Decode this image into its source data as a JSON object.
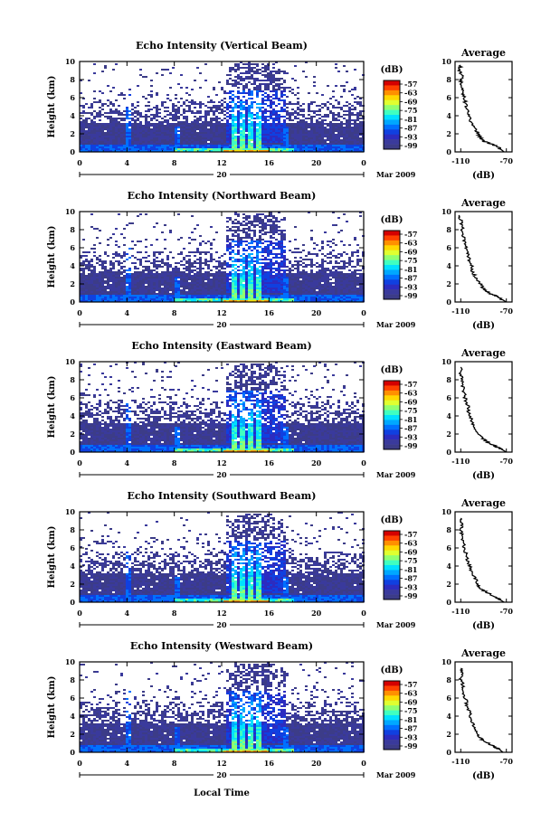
{
  "chart_data": {
    "type": "heatmap",
    "x_ticks": [
      "0",
      "4",
      "8",
      "12",
      "16",
      "20",
      "0"
    ],
    "y_ticks": [
      "0",
      "2",
      "4",
      "6",
      "8",
      "10"
    ],
    "ylabel": "Height (km)",
    "xlabel": "Local Time",
    "xlim": [
      0,
      24
    ],
    "ylim": [
      0,
      10
    ],
    "date_label": "20",
    "date_suffix": "Mar 2009",
    "colorbar": {
      "label": "(dB)",
      "ticks": [
        "-57",
        "-63",
        "-69",
        "-75",
        "-81",
        "-87",
        "-93",
        "-99"
      ],
      "colors": [
        "#d40000",
        "#ff4000",
        "#ff9000",
        "#ffd800",
        "#e0ff30",
        "#90ff70",
        "#40ffc0",
        "#00e0ff",
        "#00a8ff",
        "#0070ff",
        "#1040e0",
        "#2c2cc0",
        "#3a3a9c",
        "#3c3c88"
      ]
    },
    "average": {
      "title": "Average",
      "xlabel": "(dB)",
      "x_ticks": [
        "-110",
        "-70"
      ],
      "y_ticks": [
        "0",
        "2",
        "4",
        "6",
        "8",
        "10"
      ],
      "xlim": [
        -115,
        -65
      ],
      "ylim": [
        0,
        10
      ]
    },
    "panels": [
      {
        "title": "Echo Intensity (Vertical Beam)",
        "profile": [
          [
            -72,
            0
          ],
          [
            -75,
            0.3
          ],
          [
            -78,
            0.6
          ],
          [
            -84,
            0.9
          ],
          [
            -90,
            1.2
          ],
          [
            -93,
            1.6
          ],
          [
            -95,
            2.0
          ],
          [
            -97,
            2.5
          ],
          [
            -100,
            3.0
          ],
          [
            -102,
            3.6
          ],
          [
            -103,
            4.2
          ],
          [
            -105,
            4.8
          ],
          [
            -106,
            5.4
          ],
          [
            -107,
            6.0
          ],
          [
            -108,
            6.6
          ],
          [
            -109,
            7.2
          ],
          [
            -110,
            7.8
          ],
          [
            -109,
            8.4
          ],
          [
            -111,
            9.0
          ],
          [
            -110,
            9.6
          ]
        ]
      },
      {
        "title": "Echo Intensity (Northward Beam)",
        "profile": [
          [
            -70,
            0
          ],
          [
            -74,
            0.3
          ],
          [
            -78,
            0.6
          ],
          [
            -84,
            0.9
          ],
          [
            -88,
            1.3
          ],
          [
            -92,
            1.8
          ],
          [
            -95,
            2.3
          ],
          [
            -98,
            2.9
          ],
          [
            -100,
            3.5
          ],
          [
            -101,
            4.2
          ],
          [
            -103,
            4.8
          ],
          [
            -104,
            5.5
          ],
          [
            -106,
            6.2
          ],
          [
            -107,
            6.9
          ],
          [
            -108,
            7.6
          ],
          [
            -109,
            8.3
          ],
          [
            -110,
            9.0
          ],
          [
            -111,
            9.6
          ]
        ]
      },
      {
        "title": "Echo Intensity (Eastward Beam)",
        "profile": [
          [
            -70,
            0
          ],
          [
            -74,
            0.3
          ],
          [
            -79,
            0.6
          ],
          [
            -85,
            1.0
          ],
          [
            -90,
            1.4
          ],
          [
            -94,
            1.9
          ],
          [
            -97,
            2.5
          ],
          [
            -99,
            3.1
          ],
          [
            -101,
            3.8
          ],
          [
            -103,
            4.5
          ],
          [
            -104,
            5.2
          ],
          [
            -106,
            5.9
          ],
          [
            -107,
            6.6
          ],
          [
            -108,
            7.3
          ],
          [
            -109,
            8.0
          ],
          [
            -110,
            8.7
          ],
          [
            -110,
            9.4
          ]
        ]
      },
      {
        "title": "Echo Intensity (Southward Beam)",
        "profile": [
          [
            -72,
            0
          ],
          [
            -76,
            0.3
          ],
          [
            -80,
            0.6
          ],
          [
            -86,
            1.0
          ],
          [
            -91,
            1.4
          ],
          [
            -95,
            1.9
          ],
          [
            -97,
            2.5
          ],
          [
            -100,
            3.2
          ],
          [
            -102,
            3.9
          ],
          [
            -104,
            4.6
          ],
          [
            -105,
            5.3
          ],
          [
            -107,
            6.0
          ],
          [
            -108,
            6.7
          ],
          [
            -109,
            7.4
          ],
          [
            -110,
            8.1
          ],
          [
            -109,
            8.7
          ],
          [
            -110,
            9.3
          ]
        ]
      },
      {
        "title": "Echo Intensity (Westward Beam)",
        "profile": [
          [
            -73,
            0
          ],
          [
            -76,
            0.3
          ],
          [
            -80,
            0.6
          ],
          [
            -86,
            1.0
          ],
          [
            -91,
            1.4
          ],
          [
            -95,
            1.9
          ],
          [
            -97,
            2.5
          ],
          [
            -100,
            3.2
          ],
          [
            -101,
            3.9
          ],
          [
            -103,
            4.6
          ],
          [
            -105,
            5.3
          ],
          [
            -106,
            6.0
          ],
          [
            -108,
            6.7
          ],
          [
            -108,
            7.4
          ],
          [
            -110,
            8.1
          ],
          [
            -109,
            8.7
          ],
          [
            -110,
            9.3
          ]
        ]
      }
    ]
  }
}
